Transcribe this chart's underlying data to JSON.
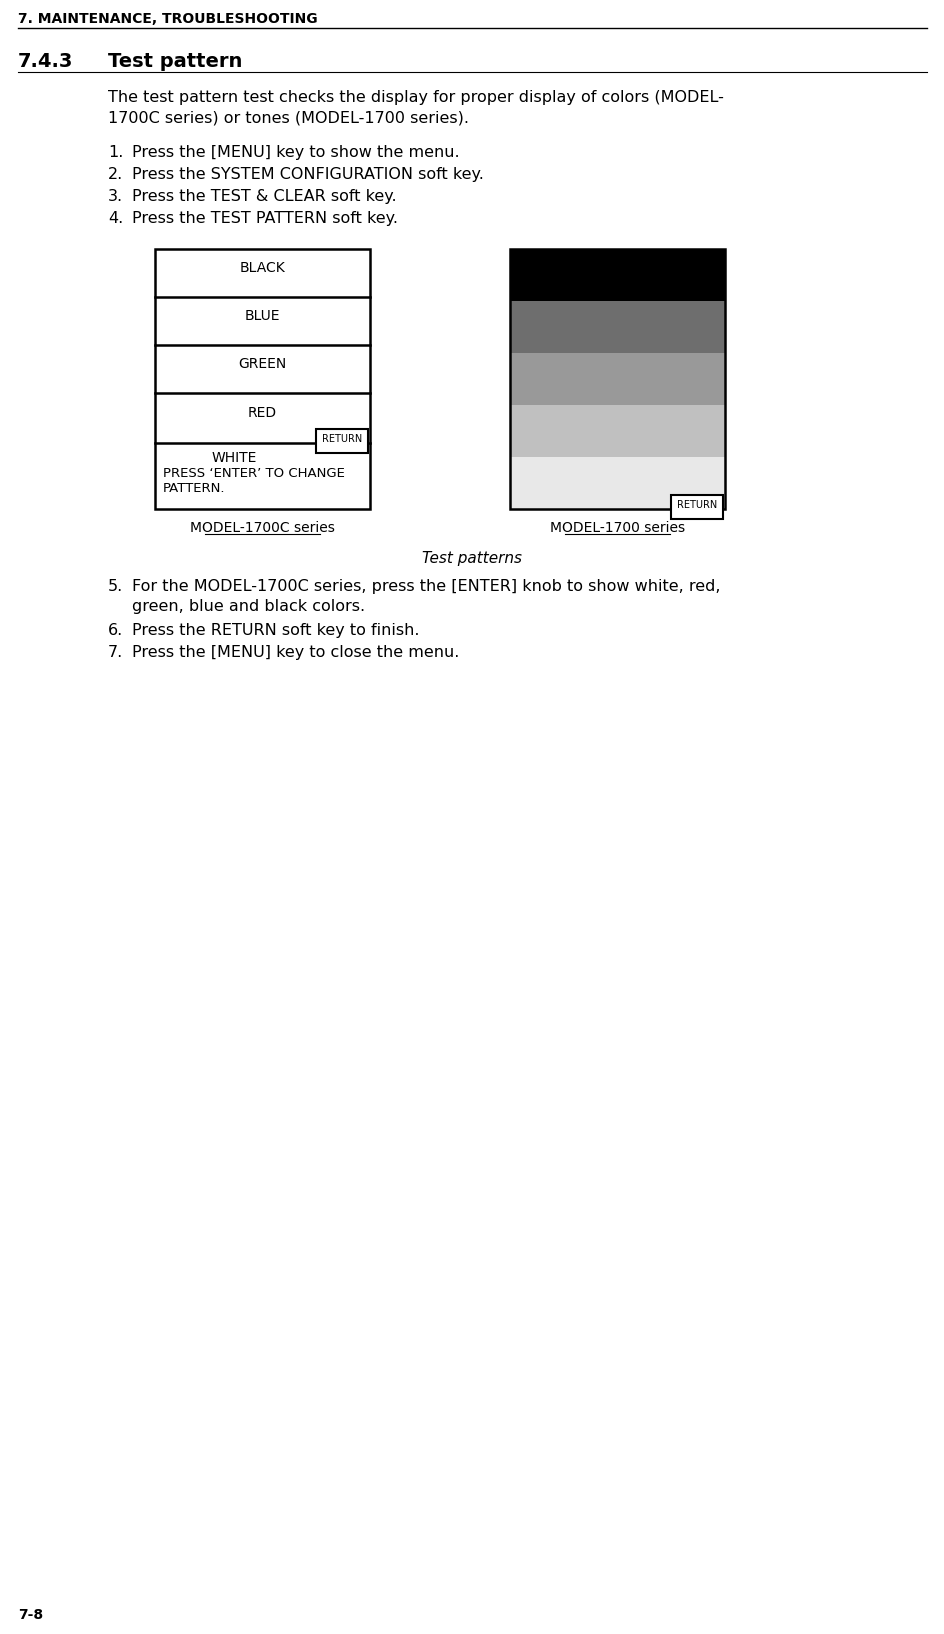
{
  "page_header": "7. MAINTENANCE, TROUBLESHOOTING",
  "page_footer": "7-8",
  "section_number": "7.4.3",
  "section_title": "Test pattern",
  "body_line1": "The test pattern test checks the display for proper display of colors (MODEL-",
  "body_line2": "1700C series) or tones (MODEL-1700 series).",
  "steps": [
    "Press the [MENU] key to show the menu.",
    "Press the SYSTEM CONFIGURATION soft key.",
    "Press the TEST & CLEAR soft key.",
    "Press the TEST PATTERN soft key."
  ],
  "left_panel_labels": [
    "BLACK",
    "BLUE",
    "GREEN",
    "RED"
  ],
  "left_white_label": "WHITE",
  "left_extra_line1": "PRESS ‘ENTER’ TO CHANGE",
  "left_extra_line2": "PATTERN.",
  "right_panel_colors": [
    "#000000",
    "#6e6e6e",
    "#999999",
    "#c0c0c0",
    "#e8e8e8"
  ],
  "return_button_text": "RETURN",
  "caption_left": "MODEL-1700C series",
  "caption_right": "MODEL-1700 series",
  "caption_center": "Test patterns",
  "step5_line1": "For the MODEL-1700C series, press the [ENTER] knob to show white, red,",
  "step5_line2": "green, blue and black colors.",
  "step6": "Press the RETURN soft key to finish.",
  "step7": "Press the [MENU] key to close the menu.",
  "bg_color": "#ffffff",
  "header_fontsize": 10,
  "section_num_fontsize": 14,
  "section_title_fontsize": 14,
  "body_fontsize": 11.5,
  "step_fontsize": 11.5,
  "panel_label_fontsize": 10,
  "caption_fontsize": 10,
  "caption_italic_fontsize": 11
}
